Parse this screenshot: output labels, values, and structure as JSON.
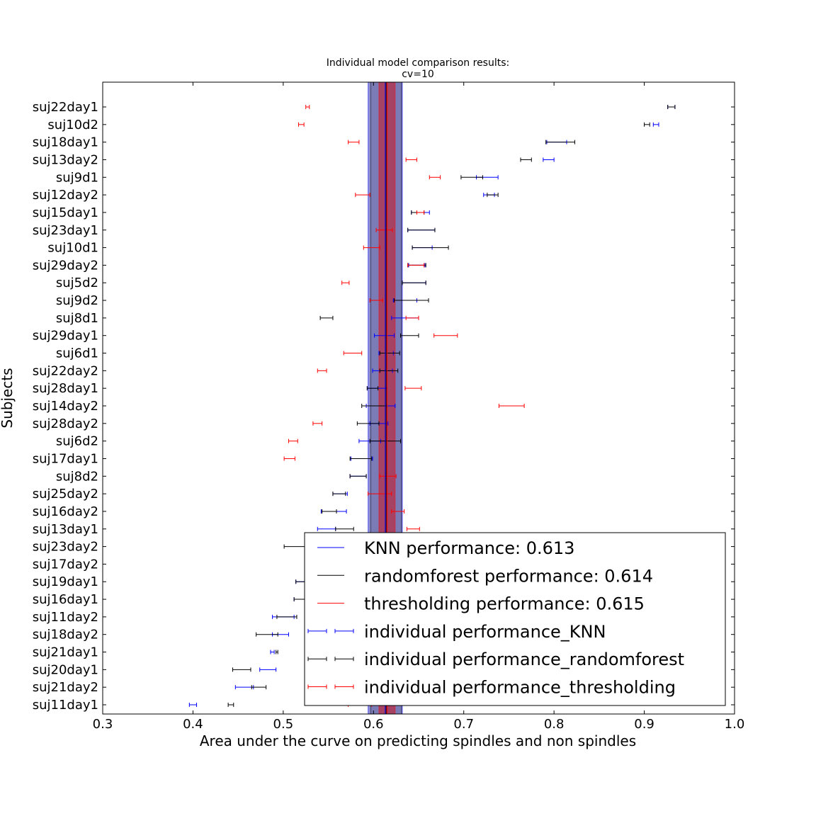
{
  "chart_data": {
    "type": "errorbar",
    "title_lines": [
      "Individual model comparison results:",
      "cv=10"
    ],
    "xlabel": "Area under the curve on predicting spindles and non spindles",
    "ylabel": "Subjects",
    "xlim": [
      0.3,
      1.0
    ],
    "xticks": [
      "0.3",
      "0.4",
      "0.5",
      "0.6",
      "0.7",
      "0.8",
      "0.9",
      "1.0"
    ],
    "grid": false,
    "legend_position": "lower-right",
    "subjects": [
      "suj22day1",
      "suj10d2",
      "suj18day1",
      "suj13day2",
      "suj9d1",
      "suj12day2",
      "suj15day1",
      "suj23day1",
      "suj10d1",
      "suj29day2",
      "suj5d2",
      "suj9d2",
      "suj8d1",
      "suj29day1",
      "suj6d1",
      "suj22day2",
      "suj28day1",
      "suj14day2",
      "suj28day2",
      "suj6d2",
      "suj17day1",
      "suj8d2",
      "suj25day2",
      "suj16day2",
      "suj13day1",
      "suj23day2",
      "suj17day2",
      "suj19day1",
      "suj16day1",
      "suj11day2",
      "suj18day2",
      "suj21day1",
      "suj20day1",
      "suj21day2",
      "suj11day1"
    ],
    "series": [
      {
        "name": "individual performance_KNN",
        "color": "#0000ff",
        "mean": [
          0.93,
          0.913,
          0.803,
          0.794,
          0.726,
          0.728,
          0.652,
          0.653,
          0.654,
          0.648,
          0.645,
          0.635,
          0.635,
          0.612,
          0.614,
          0.61,
          0.604,
          0.608,
          0.606,
          0.596,
          0.587,
          0.583,
          0.563,
          0.556,
          0.548,
          0.552,
          0.552,
          0.522,
          0.52,
          0.5,
          0.497,
          0.488,
          0.483,
          0.457,
          0.4
        ],
        "err": [
          0.004,
          0.003,
          0.011,
          0.006,
          0.012,
          0.006,
          0.01,
          0.015,
          0.011,
          0.009,
          0.013,
          0.013,
          0.015,
          0.011,
          0.008,
          0.011,
          0.011,
          0.016,
          0.01,
          0.012,
          0.012,
          0.009,
          0.008,
          0.014,
          0.01,
          0.008,
          0.012,
          0.008,
          0.008,
          0.012,
          0.009,
          0.002,
          0.009,
          0.01,
          0.004
        ]
      },
      {
        "name": "individual performance_randomforest",
        "color": "#000000",
        "mean": [
          0.93,
          0.903,
          0.807,
          0.769,
          0.709,
          0.732,
          0.649,
          0.653,
          0.663,
          0.648,
          0.645,
          0.642,
          0.548,
          0.64,
          0.618,
          0.617,
          0.599,
          0.601,
          0.594,
          0.613,
          0.586,
          0.583,
          0.562,
          0.551,
          0.568,
          0.515,
          0.552,
          0.522,
          0.52,
          0.504,
          0.482,
          0.493,
          0.454,
          0.473,
          0.442
        ],
        "err": [
          0.004,
          0.003,
          0.016,
          0.006,
          0.012,
          0.006,
          0.007,
          0.015,
          0.02,
          0.01,
          0.013,
          0.019,
          0.007,
          0.01,
          0.011,
          0.01,
          0.006,
          0.014,
          0.012,
          0.017,
          0.012,
          0.009,
          0.007,
          0.008,
          0.01,
          0.014,
          0.012,
          0.008,
          0.008,
          0.011,
          0.012,
          0.001,
          0.01,
          0.008,
          0.003
        ]
      },
      {
        "name": "individual performance_thresholding",
        "color": "#ff0000",
        "mean": [
          0.527,
          0.52,
          0.578,
          0.642,
          0.668,
          0.588,
          0.652,
          0.612,
          0.598,
          0.647,
          0.569,
          0.603,
          0.643,
          0.68,
          0.577,
          0.543,
          0.644,
          0.753,
          0.538,
          0.511,
          0.507,
          0.616,
          0.607,
          0.627,
          0.644,
          0.61,
          0.6,
          0.6,
          0.6,
          0.6,
          0.6,
          0.6,
          0.6,
          0.6,
          0.585
        ],
        "err": [
          0.002,
          0.003,
          0.006,
          0.006,
          0.006,
          0.008,
          0.004,
          0.009,
          0.009,
          0.009,
          0.004,
          0.007,
          0.007,
          0.013,
          0.01,
          0.005,
          0.009,
          0.014,
          0.005,
          0.005,
          0.006,
          0.009,
          0.013,
          0.007,
          0.007,
          0.01,
          0.01,
          0.01,
          0.01,
          0.01,
          0.01,
          0.01,
          0.01,
          0.01,
          0.013
        ]
      }
    ],
    "overall": [
      {
        "name": "KNN performance: 0.613",
        "value": 0.613,
        "spread": 0.019,
        "color": "#0000ff"
      },
      {
        "name": "randomforest performance: 0.614",
        "value": 0.614,
        "spread": 0.017,
        "color": "#000000"
      },
      {
        "name": "thresholding performance: 0.615",
        "value": 0.615,
        "spread": 0.009,
        "color": "#ff0000"
      }
    ],
    "legend": [
      {
        "label": "KNN performance: 0.613",
        "kind": "line",
        "color": "#0000ff"
      },
      {
        "label": "randomforest performance: 0.614",
        "kind": "line",
        "color": "#000000"
      },
      {
        "label": "thresholding performance: 0.615",
        "kind": "line",
        "color": "#ff0000"
      },
      {
        "label": "individual performance_KNN",
        "kind": "errorbar",
        "color": "#0000ff"
      },
      {
        "label": "individual performance_randomforest",
        "kind": "errorbar",
        "color": "#000000"
      },
      {
        "label": "individual performance_thresholding",
        "kind": "errorbar",
        "color": "#ff0000"
      }
    ]
  }
}
